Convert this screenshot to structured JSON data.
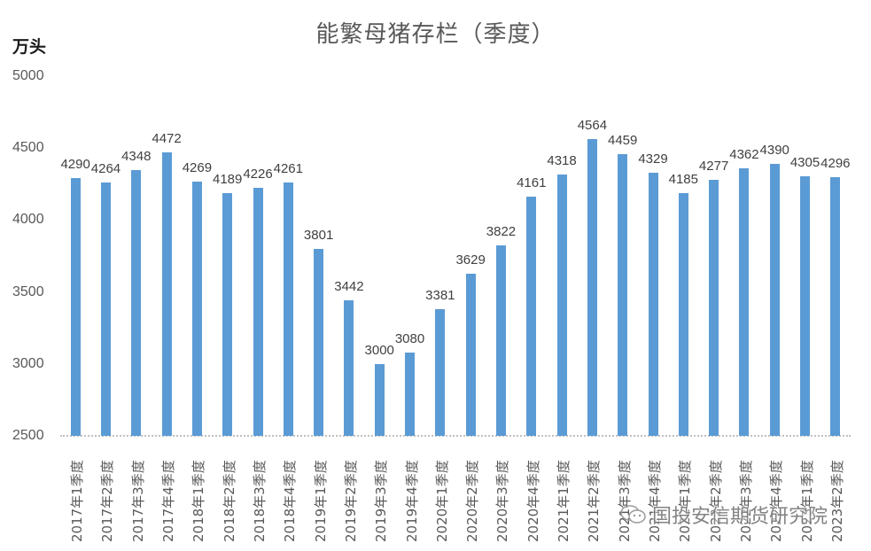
{
  "chart_data": {
    "type": "bar",
    "title": "能繁母猪存栏（季度）",
    "ylabel": "万头",
    "xlabel": "",
    "ylim": [
      2500,
      5000
    ],
    "yticks": [
      2500,
      3000,
      3500,
      4000,
      4500,
      5000
    ],
    "grid": false,
    "legend": null,
    "bar_color": "#5b9bd5",
    "categories": [
      "2017年1季度",
      "2017年2季度",
      "2017年3季度",
      "2017年4季度",
      "2018年1季度",
      "2018年2季度",
      "2018年3季度",
      "2018年4季度",
      "2019年1季度",
      "2019年2季度",
      "2019年3季度",
      "2019年4季度",
      "2020年1季度",
      "2020年2季度",
      "2020年3季度",
      "2020年4季度",
      "2021年1季度",
      "2021年2季度",
      "2021年3季度",
      "2021年4季度",
      "2022年1季度",
      "2022年2季度",
      "2022年3季度",
      "2022年4季度",
      "2023年1季度",
      "2023年2季度"
    ],
    "values": [
      4290,
      4264,
      4348,
      4472,
      4269,
      4189,
      4226,
      4261,
      3801,
      3442,
      3000,
      3080,
      3381,
      3629,
      3822,
      4161,
      4318,
      4564,
      4459,
      4329,
      4185,
      4277,
      4362,
      4390,
      4305,
      4296
    ],
    "annotations": [
      "国投安信期货研究院"
    ]
  },
  "header": {
    "title": "能繁母猪存栏（季度）",
    "unit": "万头"
  },
  "watermark": {
    "text": "国投安信期货研究院",
    "icon": "wechat-icon"
  }
}
